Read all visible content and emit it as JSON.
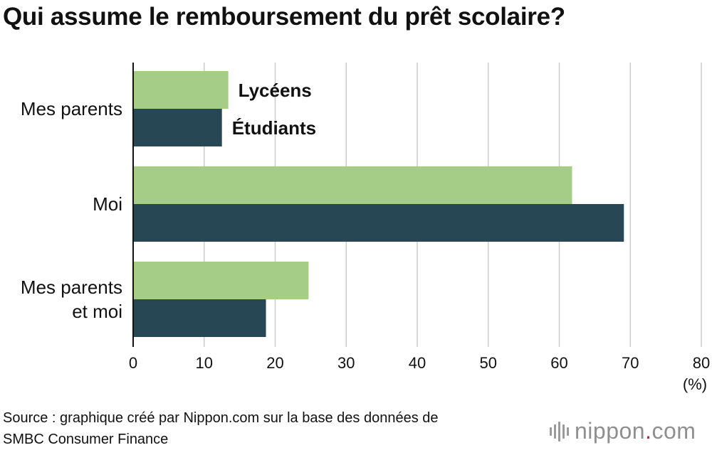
{
  "title": "Qui assume le remboursement du prêt scolaire?",
  "source": {
    "line1": "Source : graphique créé par Nippon.com sur la base des données de",
    "line2": "SMBC Consumer Finance"
  },
  "logo": {
    "name": "nippon",
    "dot": ".",
    "suffix": "com",
    "mark_icon": "sound-wave-icon"
  },
  "colors": {
    "lyceens": "#a6cd88",
    "etudiants": "#284754",
    "grid": "#cccccc",
    "axis": "#111111"
  },
  "chart_data": {
    "type": "bar",
    "orientation": "horizontal",
    "categories": [
      [
        "Mes parents"
      ],
      [
        "Moi"
      ],
      [
        "Mes parents",
        "et moi"
      ]
    ],
    "series": [
      {
        "name": "Lycéens",
        "values": [
          13.4,
          61.8,
          24.7
        ]
      },
      {
        "name": "Étudiants",
        "values": [
          12.5,
          69.1,
          18.7
        ]
      }
    ],
    "xlim": [
      0,
      80
    ],
    "xticks": [
      0,
      10,
      20,
      30,
      40,
      50,
      60,
      70,
      80
    ],
    "xunit": "(%)",
    "grid": true,
    "legend": "labels beside the first category's bars"
  }
}
